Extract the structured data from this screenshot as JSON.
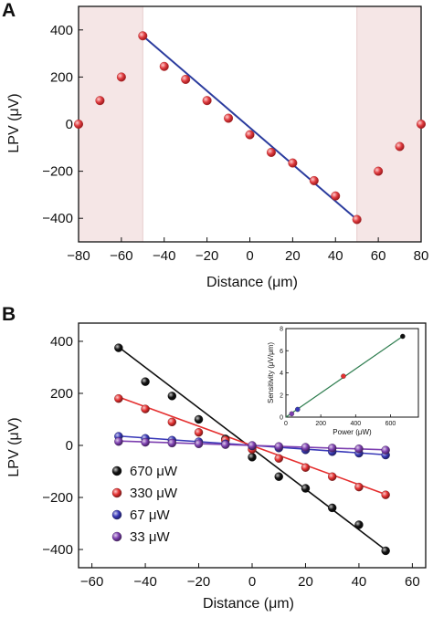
{
  "chart_data": [
    {
      "type": "scatter",
      "panel_label": "A",
      "title": "",
      "xlabel": "Distance (μm)",
      "ylabel": "LPV (μV)",
      "xlim": [
        -80,
        80
      ],
      "ylim": [
        -500,
        500
      ],
      "xticks": [
        "−80",
        "−60",
        "−40",
        "−20",
        "0",
        "20",
        "40",
        "60",
        "80"
      ],
      "yticks": [
        "400",
        "200",
        "0",
        "−200",
        "−400"
      ],
      "shaded_regions": [
        [
          -80,
          -50
        ],
        [
          50,
          80
        ]
      ],
      "colors": {
        "points": "#e03a3e",
        "fit": "#2b3c9e",
        "shade": "#f5e6e6"
      },
      "points": {
        "x": [
          -80,
          -70,
          -60,
          -50,
          -40,
          -30,
          -20,
          -10,
          0,
          10,
          20,
          30,
          40,
          50,
          60,
          70,
          80
        ],
        "y": [
          0,
          100,
          200,
          375,
          245,
          190,
          100,
          25,
          -45,
          -120,
          -165,
          -240,
          -305,
          -405,
          -200,
          -95,
          0
        ]
      },
      "fit_line": {
        "x": [
          -50,
          50
        ],
        "y": [
          375,
          -405
        ]
      }
    },
    {
      "type": "line",
      "panel_label": "B",
      "title": "",
      "xlabel": "Distance (μm)",
      "ylabel": "LPV (μV)",
      "xlim": [
        -65,
        65
      ],
      "ylim": [
        -470,
        470
      ],
      "xticks": [
        "−60",
        "−40",
        "−20",
        "0",
        "20",
        "40",
        "60"
      ],
      "yticks": [
        "400",
        "200",
        "0",
        "−200",
        "−400"
      ],
      "legend_position": "bottom-left",
      "x": [
        -50,
        -40,
        -30,
        -20,
        -10,
        0,
        10,
        20,
        30,
        40,
        50
      ],
      "series": [
        {
          "name": "670 μW",
          "color": "#111111",
          "values": [
            375,
            245,
            190,
            100,
            25,
            -45,
            -120,
            -165,
            -240,
            -305,
            -405
          ],
          "fit": [
            378,
            -402
          ]
        },
        {
          "name": "330 μW",
          "color": "#e53030",
          "values": [
            180,
            140,
            90,
            50,
            20,
            -15,
            -50,
            -85,
            -120,
            -160,
            -190
          ],
          "fit": [
            186,
            -188
          ]
        },
        {
          "name": "67 μW",
          "color": "#3838b8",
          "values": [
            35,
            27,
            20,
            14,
            6,
            -2,
            -10,
            -17,
            -24,
            -30,
            -37
          ],
          "fit": [
            36,
            -36
          ]
        },
        {
          "name": "33 μW",
          "color": "#7d3fb0",
          "values": [
            15,
            12,
            9,
            6,
            3,
            0,
            -4,
            -7,
            -10,
            -13,
            -18
          ],
          "fit": [
            17,
            -17
          ]
        }
      ],
      "inset": {
        "type": "scatter",
        "xlabel": "Power (μW)",
        "ylabel": "Sensitivity (μV/μm)",
        "xlim": [
          0,
          760
        ],
        "ylim": [
          0,
          8
        ],
        "xticks": [
          "0",
          "200",
          "400",
          "600"
        ],
        "yticks": [
          "0",
          "2",
          "4",
          "6",
          "8"
        ],
        "line_color": "#2e7d4f",
        "points": [
          {
            "x": 33,
            "y": 0.3,
            "color": "#7d3fb0"
          },
          {
            "x": 67,
            "y": 0.7,
            "color": "#3838b8"
          },
          {
            "x": 330,
            "y": 3.7,
            "color": "#e53030"
          },
          {
            "x": 670,
            "y": 7.3,
            "color": "#111111"
          }
        ],
        "fit_line": {
          "x": [
            0,
            670
          ],
          "y": [
            0,
            7.3
          ]
        }
      }
    }
  ]
}
